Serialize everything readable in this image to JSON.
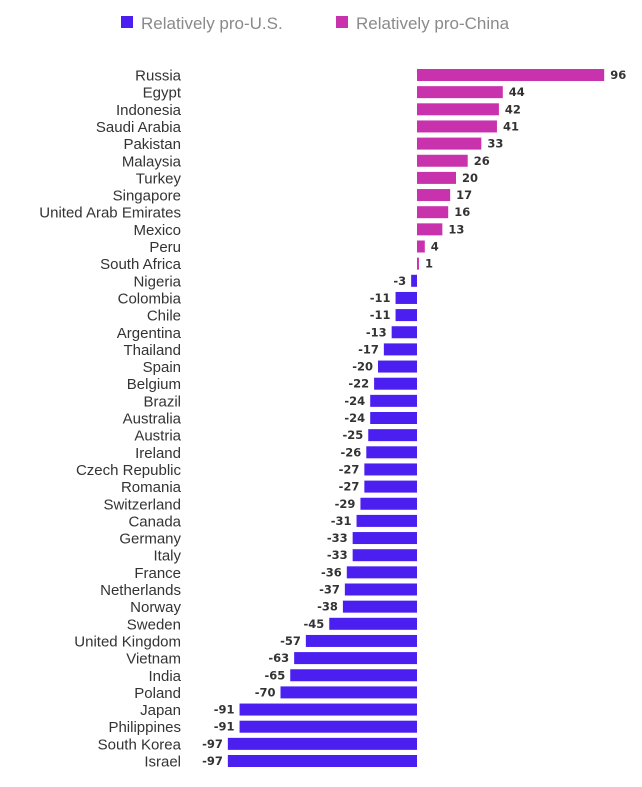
{
  "colors": {
    "pro_us": "#4a1ff0",
    "pro_china": "#c932ad"
  },
  "chart_data": {
    "type": "bar",
    "orientation": "horizontal",
    "title": "",
    "xlabel": "",
    "ylabel": "",
    "legend": {
      "placement": "top",
      "entries": [
        "Relatively pro-U.S.",
        "Relatively pro-China"
      ]
    },
    "grid": false,
    "xlim": [
      -97,
      96
    ],
    "categories": [
      "Russia",
      "Egypt",
      "Indonesia",
      "Saudi Arabia",
      "Pakistan",
      "Malaysia",
      "Turkey",
      "Singapore",
      "United Arab Emirates",
      "Mexico",
      "Peru",
      "South Africa",
      "Nigeria",
      "Colombia",
      "Chile",
      "Argentina",
      "Thailand",
      "Spain",
      "Belgium",
      "Brazil",
      "Australia",
      "Austria",
      "Ireland",
      "Czech Republic",
      "Romania",
      "Switzerland",
      "Canada",
      "Germany",
      "Italy",
      "France",
      "Netherlands",
      "Norway",
      "Sweden",
      "United Kingdom",
      "Vietnam",
      "India",
      "Poland",
      "Japan",
      "Philippines",
      "South Korea",
      "Israel"
    ],
    "values": [
      96,
      44,
      42,
      41,
      33,
      26,
      20,
      17,
      16,
      13,
      4,
      1,
      -3,
      -11,
      -11,
      -13,
      -17,
      -20,
      -22,
      -24,
      -24,
      -25,
      -26,
      -27,
      -27,
      -29,
      -31,
      -33,
      -33,
      -36,
      -37,
      -38,
      -45,
      -57,
      -63,
      -65,
      -70,
      -91,
      -91,
      -97,
      -97
    ]
  }
}
